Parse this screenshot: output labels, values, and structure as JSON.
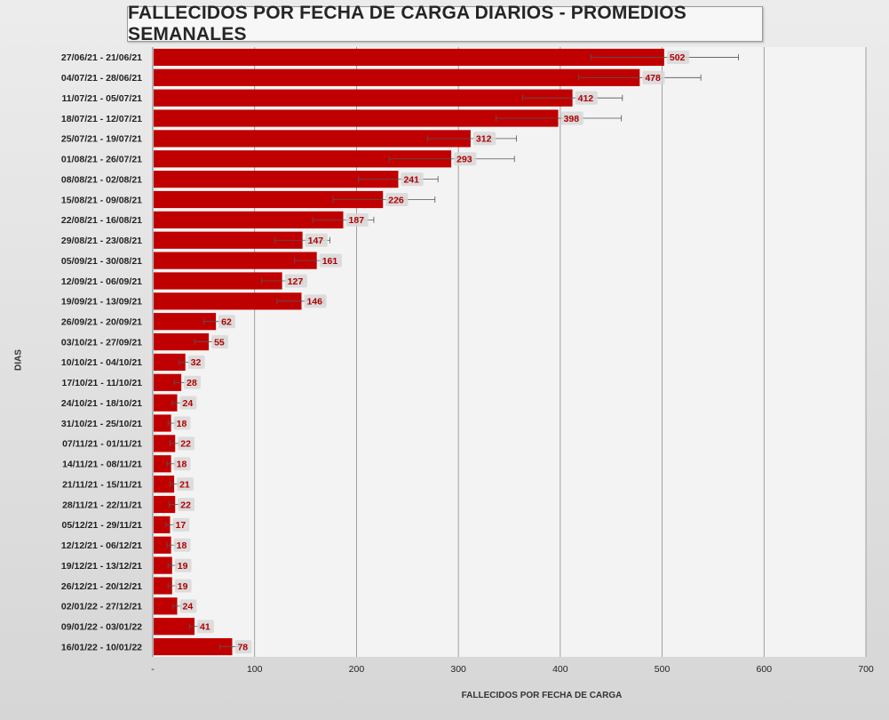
{
  "chart_data": {
    "type": "bar",
    "orientation": "horizontal",
    "title": "FALLECIDOS POR FECHA DE CARGA DIARIOS - PROMEDIOS SEMANALES",
    "xlabel": "FALLECIDOS POR FECHA DE CARGA",
    "ylabel": "DIAS",
    "xlim": [
      0,
      700
    ],
    "xticks": [
      "-",
      "100",
      "200",
      "300",
      "400",
      "500",
      "600",
      "700"
    ],
    "grid": "vertical",
    "bar_color": "#c00000",
    "label_color": "#b00000",
    "categories": [
      "27/06/21 - 21/06/21",
      "04/07/21 - 28/06/21",
      "11/07/21 - 05/07/21",
      "18/07/21 - 12/07/21",
      "25/07/21 - 19/07/21",
      "01/08/21 - 26/07/21",
      "08/08/21 - 02/08/21",
      "15/08/21 - 09/08/21",
      "22/08/21 - 16/08/21",
      "29/08/21 - 23/08/21",
      "05/09/21 - 30/08/21",
      "12/09/21 - 06/09/21",
      "19/09/21 - 13/09/21",
      "26/09/21 - 20/09/21",
      "03/10/21 - 27/09/21",
      "10/10/21 - 04/10/21",
      "17/10/21 - 11/10/21",
      "24/10/21 - 18/10/21",
      "31/10/21 - 25/10/21",
      "07/11/21 - 01/11/21",
      "14/11/21 - 08/11/21",
      "21/11/21 - 15/11/21",
      "28/11/21 - 22/11/21",
      "05/12/21 - 29/11/21",
      "12/12/21 - 06/12/21",
      "19/12/21 - 13/12/21",
      "26/12/21 - 20/12/21",
      "02/01/22 - 27/12/21",
      "09/01/22 - 03/01/22",
      "16/01/22 - 10/01/22"
    ],
    "values": [
      502,
      478,
      412,
      398,
      312,
      293,
      241,
      226,
      187,
      147,
      161,
      127,
      146,
      62,
      55,
      32,
      28,
      24,
      18,
      22,
      18,
      21,
      22,
      17,
      18,
      19,
      19,
      24,
      41,
      78
    ],
    "error_bars": [
      [
        430,
        575
      ],
      [
        418,
        538
      ],
      [
        363,
        461
      ],
      [
        337,
        460
      ],
      [
        270,
        357
      ],
      [
        232,
        355
      ],
      [
        202,
        280
      ],
      [
        177,
        277
      ],
      [
        157,
        217
      ],
      [
        120,
        174
      ],
      [
        139,
        177
      ],
      [
        107,
        147
      ],
      [
        122,
        168
      ],
      [
        50,
        72
      ],
      [
        41,
        68
      ],
      [
        26,
        38
      ],
      [
        21,
        35
      ],
      [
        19,
        29
      ],
      [
        15,
        22
      ],
      [
        17,
        26
      ],
      [
        14,
        22
      ],
      [
        17,
        25
      ],
      [
        16,
        27
      ],
      [
        13,
        21
      ],
      [
        14,
        22
      ],
      [
        15,
        23
      ],
      [
        15,
        23
      ],
      [
        20,
        28
      ],
      [
        36,
        46
      ],
      [
        66,
        90
      ]
    ]
  }
}
